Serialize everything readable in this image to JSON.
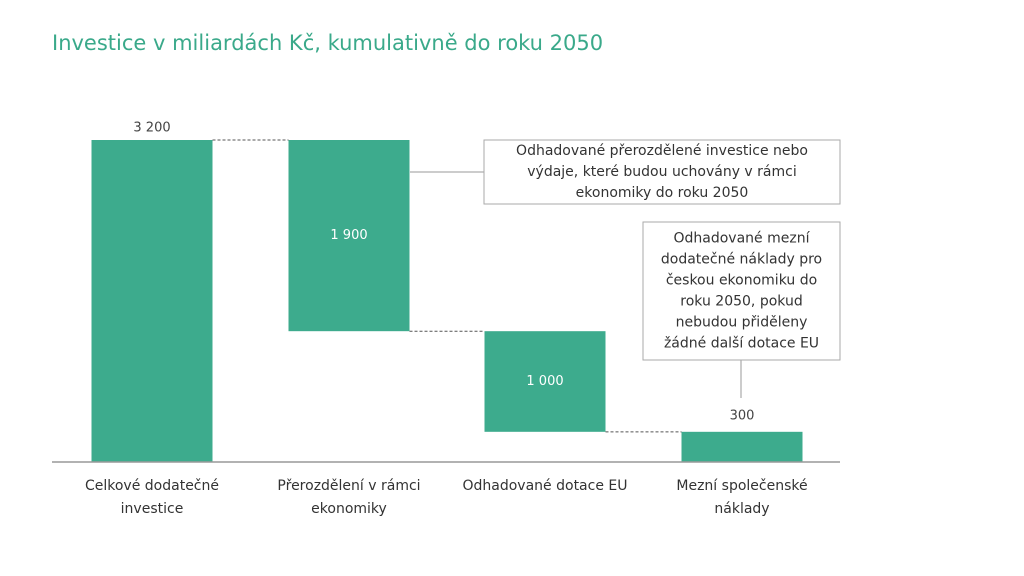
{
  "chart_data": {
    "type": "waterfall",
    "title": "Investice v miliardách Kč, kumulativně do roku 2050",
    "categories": [
      "Celkové dodatečné investice",
      "Přerozdělení v rámci ekonomiky",
      "Odhadované dotace EU",
      "Mezní společenské náklady"
    ],
    "values": [
      3200,
      1900,
      1000,
      300
    ],
    "value_labels": [
      "3 200",
      "1 900",
      "1 000",
      "300"
    ],
    "measure": [
      "total",
      "decrease",
      "decrease",
      "total"
    ],
    "color": "#3dab8d",
    "ylim": [
      0,
      3200
    ],
    "annotations": [
      {
        "lines": [
          "Odhadované přerozdělené investice nebo",
          "výdaje, které budou uchovány v rámci",
          "ekonomiky do roku 2050"
        ]
      },
      {
        "lines": [
          "Odhadované mezní",
          "dodatečné náklady pro",
          "českou ekonomiku do",
          "roku 2050, pokud",
          "nebudou přiděleny",
          "žádné další dotace EU"
        ]
      }
    ]
  }
}
